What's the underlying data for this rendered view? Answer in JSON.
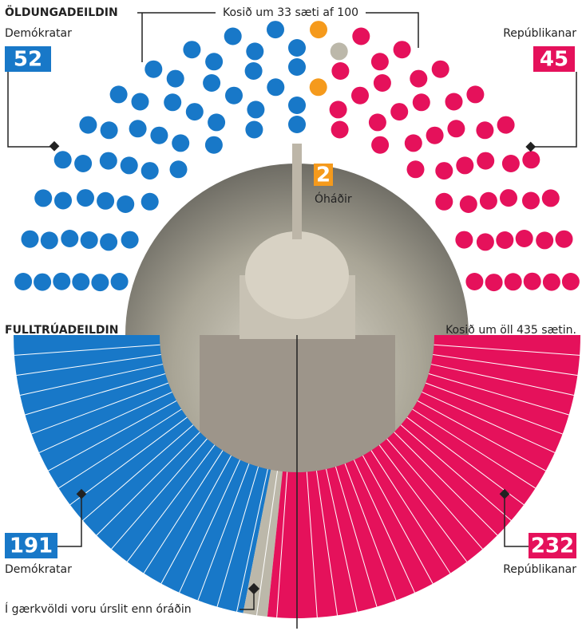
{
  "chart_data": [
    {
      "type": "parliament",
      "title": "ÖLDUNGADEILDIN",
      "subtitle": "Kosið um 33 sæti af 100",
      "series": [
        {
          "name": "Demókratar",
          "color": "#1878c8",
          "value": 52
        },
        {
          "name": "Óháðir",
          "color": "#f59a1c",
          "value": 2
        },
        {
          "color": "#bcb8aa",
          "value": 1
        },
        {
          "name": "Repúblikanar",
          "color": "#e5115b",
          "value": 45
        }
      ]
    },
    {
      "type": "semicircle",
      "title": "FULLTRÚADEILDIN",
      "subtitle": "Kosið um öll 435 sætin.",
      "series": [
        {
          "name": "Demókratar",
          "color": "#1878c8",
          "value": 191
        },
        {
          "name": "Í gærkvöldi voru úrslit enn óráðin",
          "color": "#bcb8aa",
          "value": 12
        },
        {
          "name": "Repúblikanar",
          "color": "#e5115b",
          "value": 232
        }
      ]
    }
  ]
}
